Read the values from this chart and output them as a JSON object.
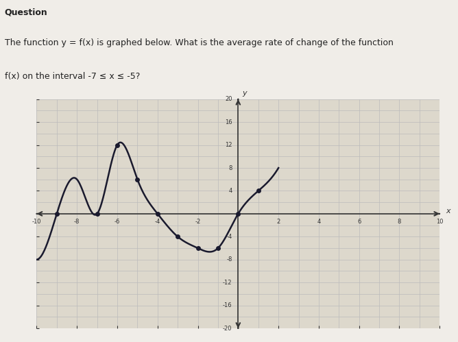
{
  "title_line1": "Question",
  "title_line2": "The function y = f(x) is graphed below. What is the average rate of change of the function",
  "title_line3": "f(x) on the interval -7 ≤ x ≤ -5?",
  "background_color": "#f0ede8",
  "plot_background": "#ddd8cc",
  "grid_color": "#bbbbbb",
  "axis_color": "#333333",
  "curve_color": "#1a1a2e",
  "dot_color": "#1a1a2e",
  "xmin": -10,
  "xmax": 10,
  "ymin": -20,
  "ymax": 20,
  "xticks": [
    -10,
    -8,
    -6,
    -4,
    -2,
    0,
    2,
    4,
    6,
    8,
    10
  ],
  "yticks": [
    -20,
    -16,
    -12,
    -8,
    -4,
    0,
    4,
    8,
    12,
    16,
    20
  ],
  "key_points": [
    [
      -9,
      0
    ],
    [
      -7,
      0
    ],
    [
      -6,
      12
    ],
    [
      -5,
      6
    ],
    [
      -4,
      0
    ],
    [
      -3,
      -4
    ],
    [
      -2,
      -6
    ],
    [
      -1,
      -6
    ],
    [
      0,
      0
    ],
    [
      1,
      4
    ]
  ],
  "curve_x": [
    -10,
    -9,
    -8,
    -7,
    -6,
    -5,
    -4,
    -3,
    -2,
    -1,
    0,
    1,
    2
  ],
  "curve_y": [
    -8,
    0,
    6,
    0,
    12,
    6,
    0,
    -4,
    -6,
    -6,
    0,
    4,
    8
  ]
}
